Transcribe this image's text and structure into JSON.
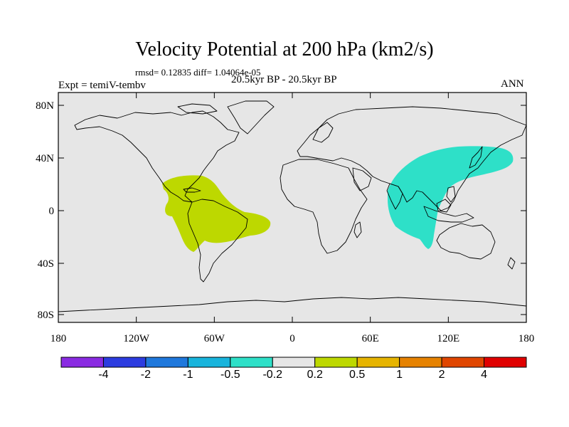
{
  "title": "Velocity Potential at 200 hPa (km2/s)",
  "stats": "rmsd= 0.12835 diff= 1.04064e-05",
  "experiment": "Expt = temiV-tembv",
  "period": "20.5kyr BP - 20.5kyr BP",
  "season": "ANN",
  "map": {
    "background_color": "#e6e6e6",
    "coastline_color": "#000000",
    "lon_ticks": [
      "180",
      "120W",
      "60W",
      "0",
      "60E",
      "120E",
      "180"
    ],
    "lat_ticks": [
      "80N",
      "40N",
      "0",
      "40S",
      "80S"
    ],
    "anomalies": [
      {
        "name": "americas-positive",
        "color": "#bdd800",
        "class": "0.2 to 0.5"
      },
      {
        "name": "asia-negative",
        "color": "#2ee0c8",
        "class": "-0.5 to -0.2"
      }
    ]
  },
  "colorbar": {
    "colors": [
      "#8a2be2",
      "#2c3ce0",
      "#1f78dc",
      "#18b4dc",
      "#2ee0c8",
      "#e6e6e6",
      "#bdd800",
      "#e6b400",
      "#e68200",
      "#e04600",
      "#e00000"
    ],
    "labels": [
      "-4",
      "-2",
      "-1",
      "-0.5",
      "-0.2",
      "0.2",
      "0.5",
      "1",
      "2",
      "4"
    ]
  }
}
